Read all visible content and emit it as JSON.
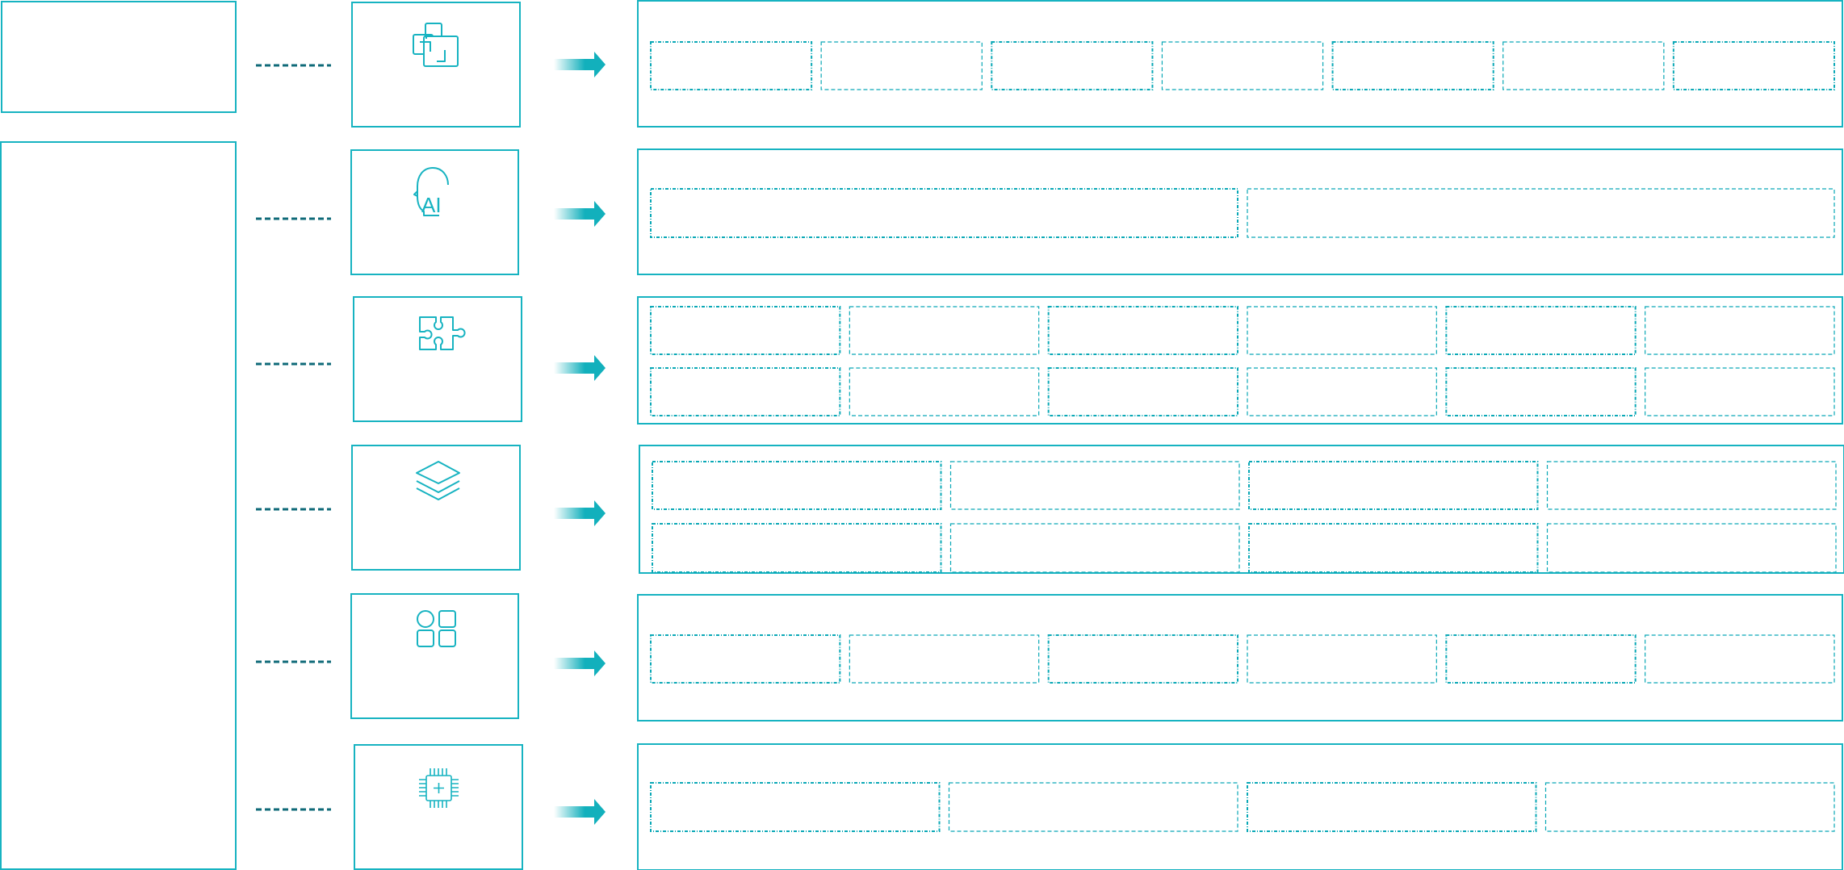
{
  "colors": {
    "frame": "#17b3c1",
    "connector": "#0f6a78",
    "arrow": "#12b0bc",
    "inner_dash": "#0aa8b6"
  },
  "icons": [
    "copy-windows-icon",
    "ai-head-icon",
    "puzzle-icon",
    "layers-icon",
    "apps-grid-icon",
    "chip-icon"
  ],
  "ai_icon_text": "AI",
  "rows": [
    {
      "icon": "copy-windows-icon",
      "inner_layout": [
        7
      ]
    },
    {
      "icon": "ai-head-icon",
      "inner_layout": [
        2
      ]
    },
    {
      "icon": "puzzle-icon",
      "inner_layout": [
        6,
        6
      ]
    },
    {
      "icon": "layers-icon",
      "inner_layout": [
        4,
        4
      ]
    },
    {
      "icon": "apps-grid-icon",
      "inner_layout": [
        6
      ]
    },
    {
      "icon": "chip-icon",
      "inner_layout": [
        4
      ]
    }
  ]
}
